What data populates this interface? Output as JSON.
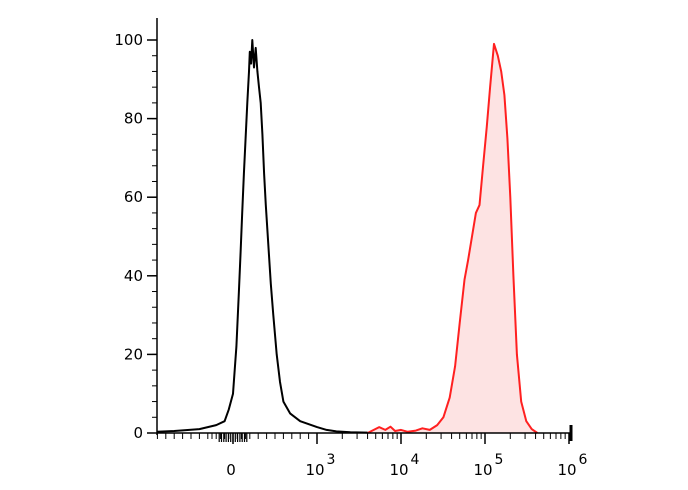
{
  "chart_data": {
    "type": "area",
    "x_scale": "biexponential",
    "y_range": [
      0,
      100
    ],
    "y_ticks": [
      {
        "value": 0,
        "label": "0"
      },
      {
        "value": 20,
        "label": "20"
      },
      {
        "value": 40,
        "label": "40"
      },
      {
        "value": 60,
        "label": "60"
      },
      {
        "value": 80,
        "label": "80"
      },
      {
        "value": 100,
        "label": "100"
      }
    ],
    "x_ticks": [
      {
        "value": 0,
        "label": "0",
        "exp": ""
      },
      {
        "value": 1000,
        "label": "10",
        "exp": "3"
      },
      {
        "value": 10000,
        "label": "10",
        "exp": "4"
      },
      {
        "value": 100000,
        "label": "10",
        "exp": "5"
      },
      {
        "value": 1000000,
        "label": "10",
        "exp": "6"
      }
    ],
    "series": [
      {
        "color": "#000000",
        "fill": "none",
        "points": [
          [
            -1000,
            0.3
          ],
          [
            -700,
            0.5
          ],
          [
            -400,
            1
          ],
          [
            -200,
            2
          ],
          [
            -100,
            3
          ],
          [
            -50,
            6
          ],
          [
            0,
            10
          ],
          [
            20,
            16
          ],
          [
            40,
            22
          ],
          [
            70,
            36
          ],
          [
            90,
            46
          ],
          [
            110,
            56
          ],
          [
            130,
            66
          ],
          [
            150,
            75
          ],
          [
            170,
            84
          ],
          [
            190,
            92
          ],
          [
            200,
            97
          ],
          [
            215,
            94
          ],
          [
            230,
            100
          ],
          [
            250,
            93
          ],
          [
            270,
            98
          ],
          [
            290,
            92
          ],
          [
            310,
            88
          ],
          [
            330,
            84
          ],
          [
            350,
            76
          ],
          [
            370,
            66
          ],
          [
            390,
            58
          ],
          [
            420,
            48
          ],
          [
            450,
            38
          ],
          [
            480,
            30
          ],
          [
            520,
            20
          ],
          [
            560,
            13
          ],
          [
            600,
            8
          ],
          [
            680,
            5
          ],
          [
            800,
            3
          ],
          [
            1000,
            1.5
          ],
          [
            1300,
            0.8
          ],
          [
            1700,
            0.4
          ],
          [
            2500,
            0.2
          ],
          [
            4000,
            0.1
          ]
        ]
      },
      {
        "color": "#ff2020",
        "fill": "#fde3e3",
        "points": [
          [
            4000,
            0
          ],
          [
            5500,
            1.5
          ],
          [
            6500,
            0.8
          ],
          [
            7500,
            1.6
          ],
          [
            8500,
            0.5
          ],
          [
            10000,
            0.8
          ],
          [
            12000,
            0.3
          ],
          [
            15000,
            0.6
          ],
          [
            18000,
            1.2
          ],
          [
            22000,
            0.8
          ],
          [
            27000,
            2
          ],
          [
            32000,
            4
          ],
          [
            38000,
            9
          ],
          [
            44000,
            17
          ],
          [
            50000,
            28
          ],
          [
            57000,
            39
          ],
          [
            63000,
            44
          ],
          [
            70000,
            50
          ],
          [
            78000,
            56
          ],
          [
            86000,
            58
          ],
          [
            95000,
            68
          ],
          [
            105000,
            78
          ],
          [
            115000,
            88
          ],
          [
            128000,
            99
          ],
          [
            142000,
            96
          ],
          [
            156000,
            92
          ],
          [
            170000,
            86
          ],
          [
            185000,
            75
          ],
          [
            200000,
            60
          ],
          [
            218000,
            40
          ],
          [
            240000,
            20
          ],
          [
            270000,
            8
          ],
          [
            310000,
            3
          ],
          [
            360000,
            1
          ],
          [
            420000,
            0
          ]
        ]
      }
    ]
  }
}
